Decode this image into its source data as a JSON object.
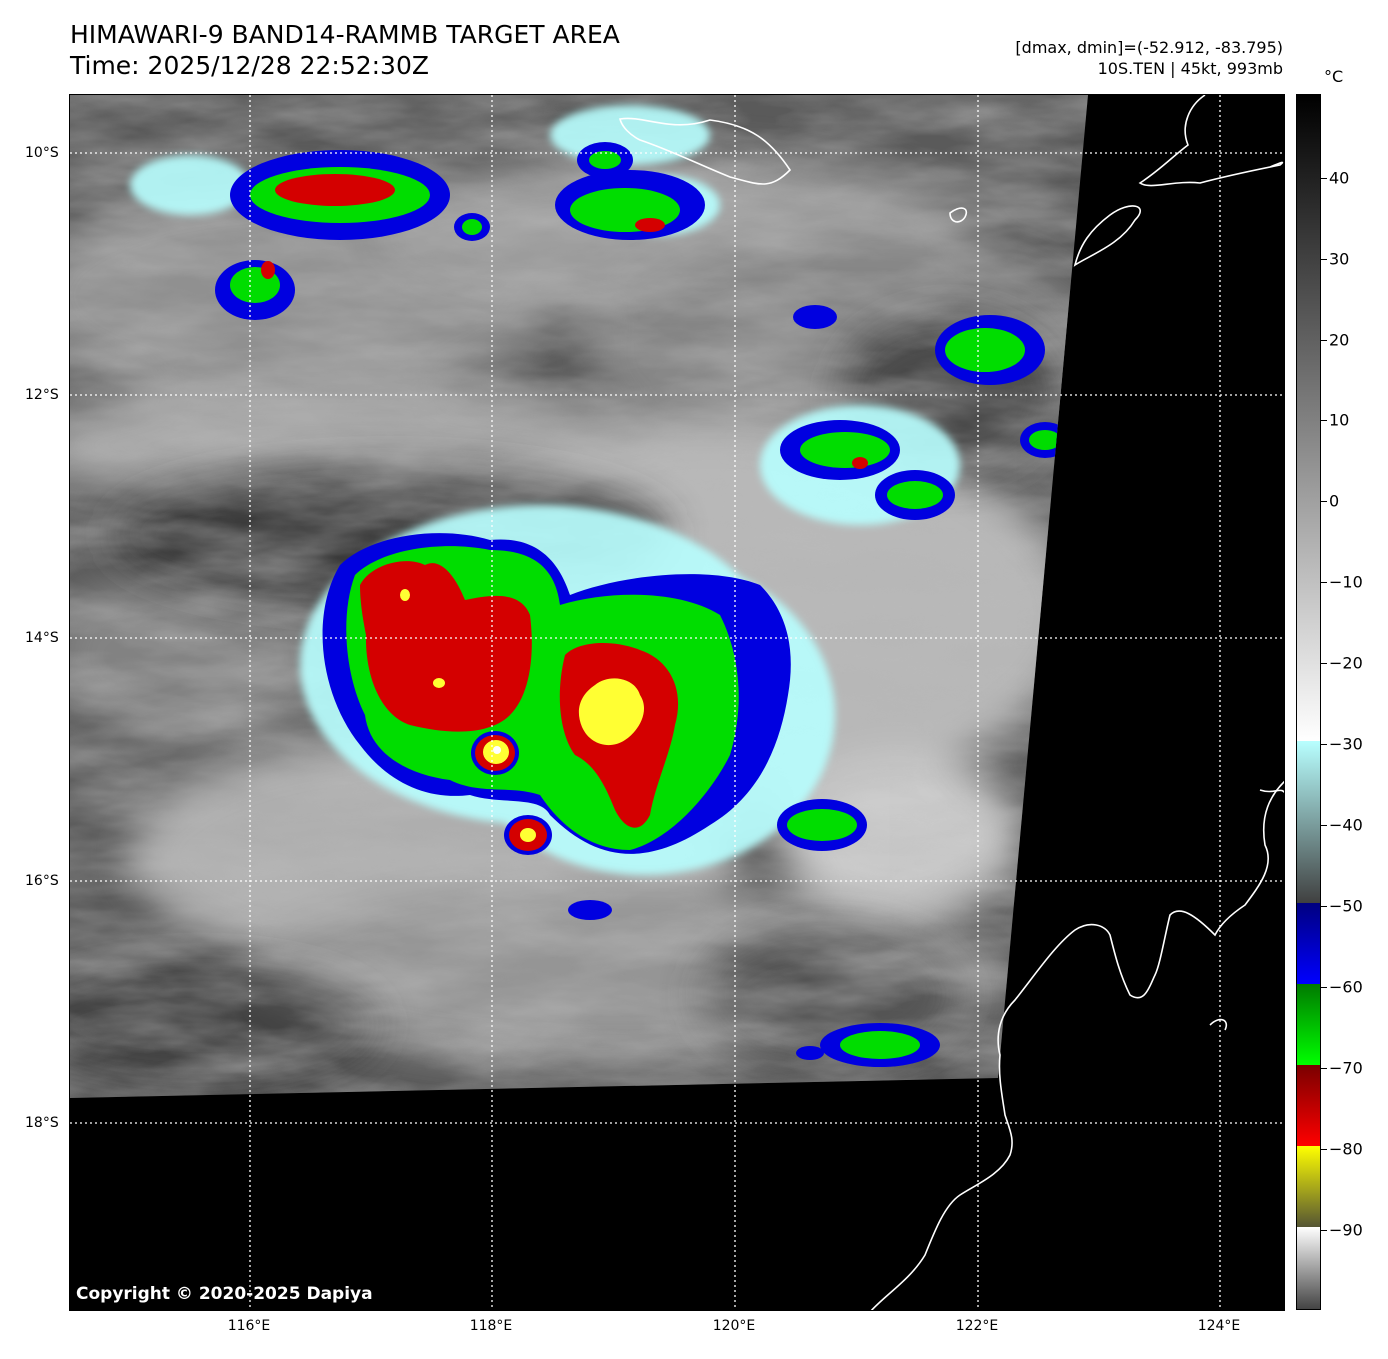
{
  "header": {
    "title_line1": "HIMAWARI-9 BAND14-RAMMB TARGET AREA",
    "title_line2": "Time: 2025/12/28 22:52:30Z",
    "stats_line1": "[dmax, dmin]=(-52.912, -83.795)",
    "stats_line2": "10S.TEN | 45kt, 993mb"
  },
  "map": {
    "lat_labels": [
      "10°S",
      "12°S",
      "14°S",
      "16°S",
      "18°S"
    ],
    "lon_labels": [
      "116°E",
      "118°E",
      "120°E",
      "122°E",
      "124°E"
    ],
    "copyright": "Copyright © 2020-2025 Dapiya",
    "colors": {
      "no_data": "#000000",
      "coastline": "#ffffff",
      "gridline": "#ffffff"
    }
  },
  "colorbar": {
    "unit": "°C",
    "tick_labels": [
      "40",
      "30",
      "20",
      "10",
      "0",
      "−10",
      "−20",
      "−30",
      "−40",
      "−50",
      "−60",
      "−70",
      "−80",
      "−90"
    ],
    "range_celsius": [
      -100,
      50
    ],
    "segments": [
      {
        "from": 50,
        "to": -30,
        "colors": [
          "#000000",
          "#ffffff"
        ]
      },
      {
        "from": -30,
        "to": -50,
        "colors": [
          "#b8ffff",
          "#404040"
        ]
      },
      {
        "from": -50,
        "to": -60,
        "colors": [
          "#000080",
          "#0000ff"
        ]
      },
      {
        "from": -60,
        "to": -70,
        "colors": [
          "#007a00",
          "#00ff00"
        ]
      },
      {
        "from": -70,
        "to": -80,
        "colors": [
          "#7a0000",
          "#ff0000"
        ]
      },
      {
        "from": -80,
        "to": -90,
        "colors": [
          "#ffff00",
          "#555533"
        ]
      },
      {
        "from": -90,
        "to": -100,
        "colors": [
          "#ffffff",
          "#444444"
        ]
      }
    ]
  }
}
